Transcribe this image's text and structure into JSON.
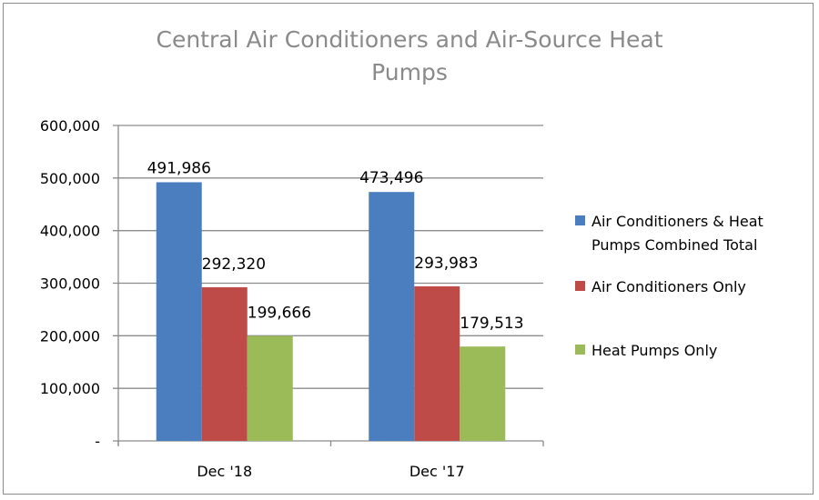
{
  "chart_data": {
    "type": "bar",
    "title_lines": [
      "Central Air Conditioners and Air-Source Heat",
      "Pumps"
    ],
    "xlabel": "",
    "ylabel": "",
    "categories": [
      "Dec '18",
      "Dec '17"
    ],
    "series": [
      {
        "name": "Air Conditioners & Heat Pumps Combined Total",
        "legend_lines": [
          "Air Conditioners & Heat",
          "Pumps Combined Total"
        ],
        "color": "#4a7ebf",
        "values": [
          491986,
          473496
        ],
        "labels": [
          "491,986",
          "473,496"
        ]
      },
      {
        "name": "Air Conditioners Only",
        "legend_lines": [
          "Air Conditioners Only"
        ],
        "color": "#be4b48",
        "values": [
          292320,
          293983
        ],
        "labels": [
          "292,320",
          "293,983"
        ]
      },
      {
        "name": "Heat Pumps Only",
        "legend_lines": [
          "Heat Pumps Only"
        ],
        "color": "#9bbb59",
        "values": [
          199666,
          179513
        ],
        "labels": [
          "199,666",
          "179,513"
        ]
      }
    ],
    "ylim": [
      0,
      600000
    ],
    "yticks": [
      0,
      100000,
      200000,
      300000,
      400000,
      500000,
      600000
    ],
    "ytick_labels": [
      "-",
      "100,000",
      "200,000",
      "300,000",
      "400,000",
      "500,000",
      "600,000"
    ],
    "grid": true,
    "legend_position": "right"
  }
}
